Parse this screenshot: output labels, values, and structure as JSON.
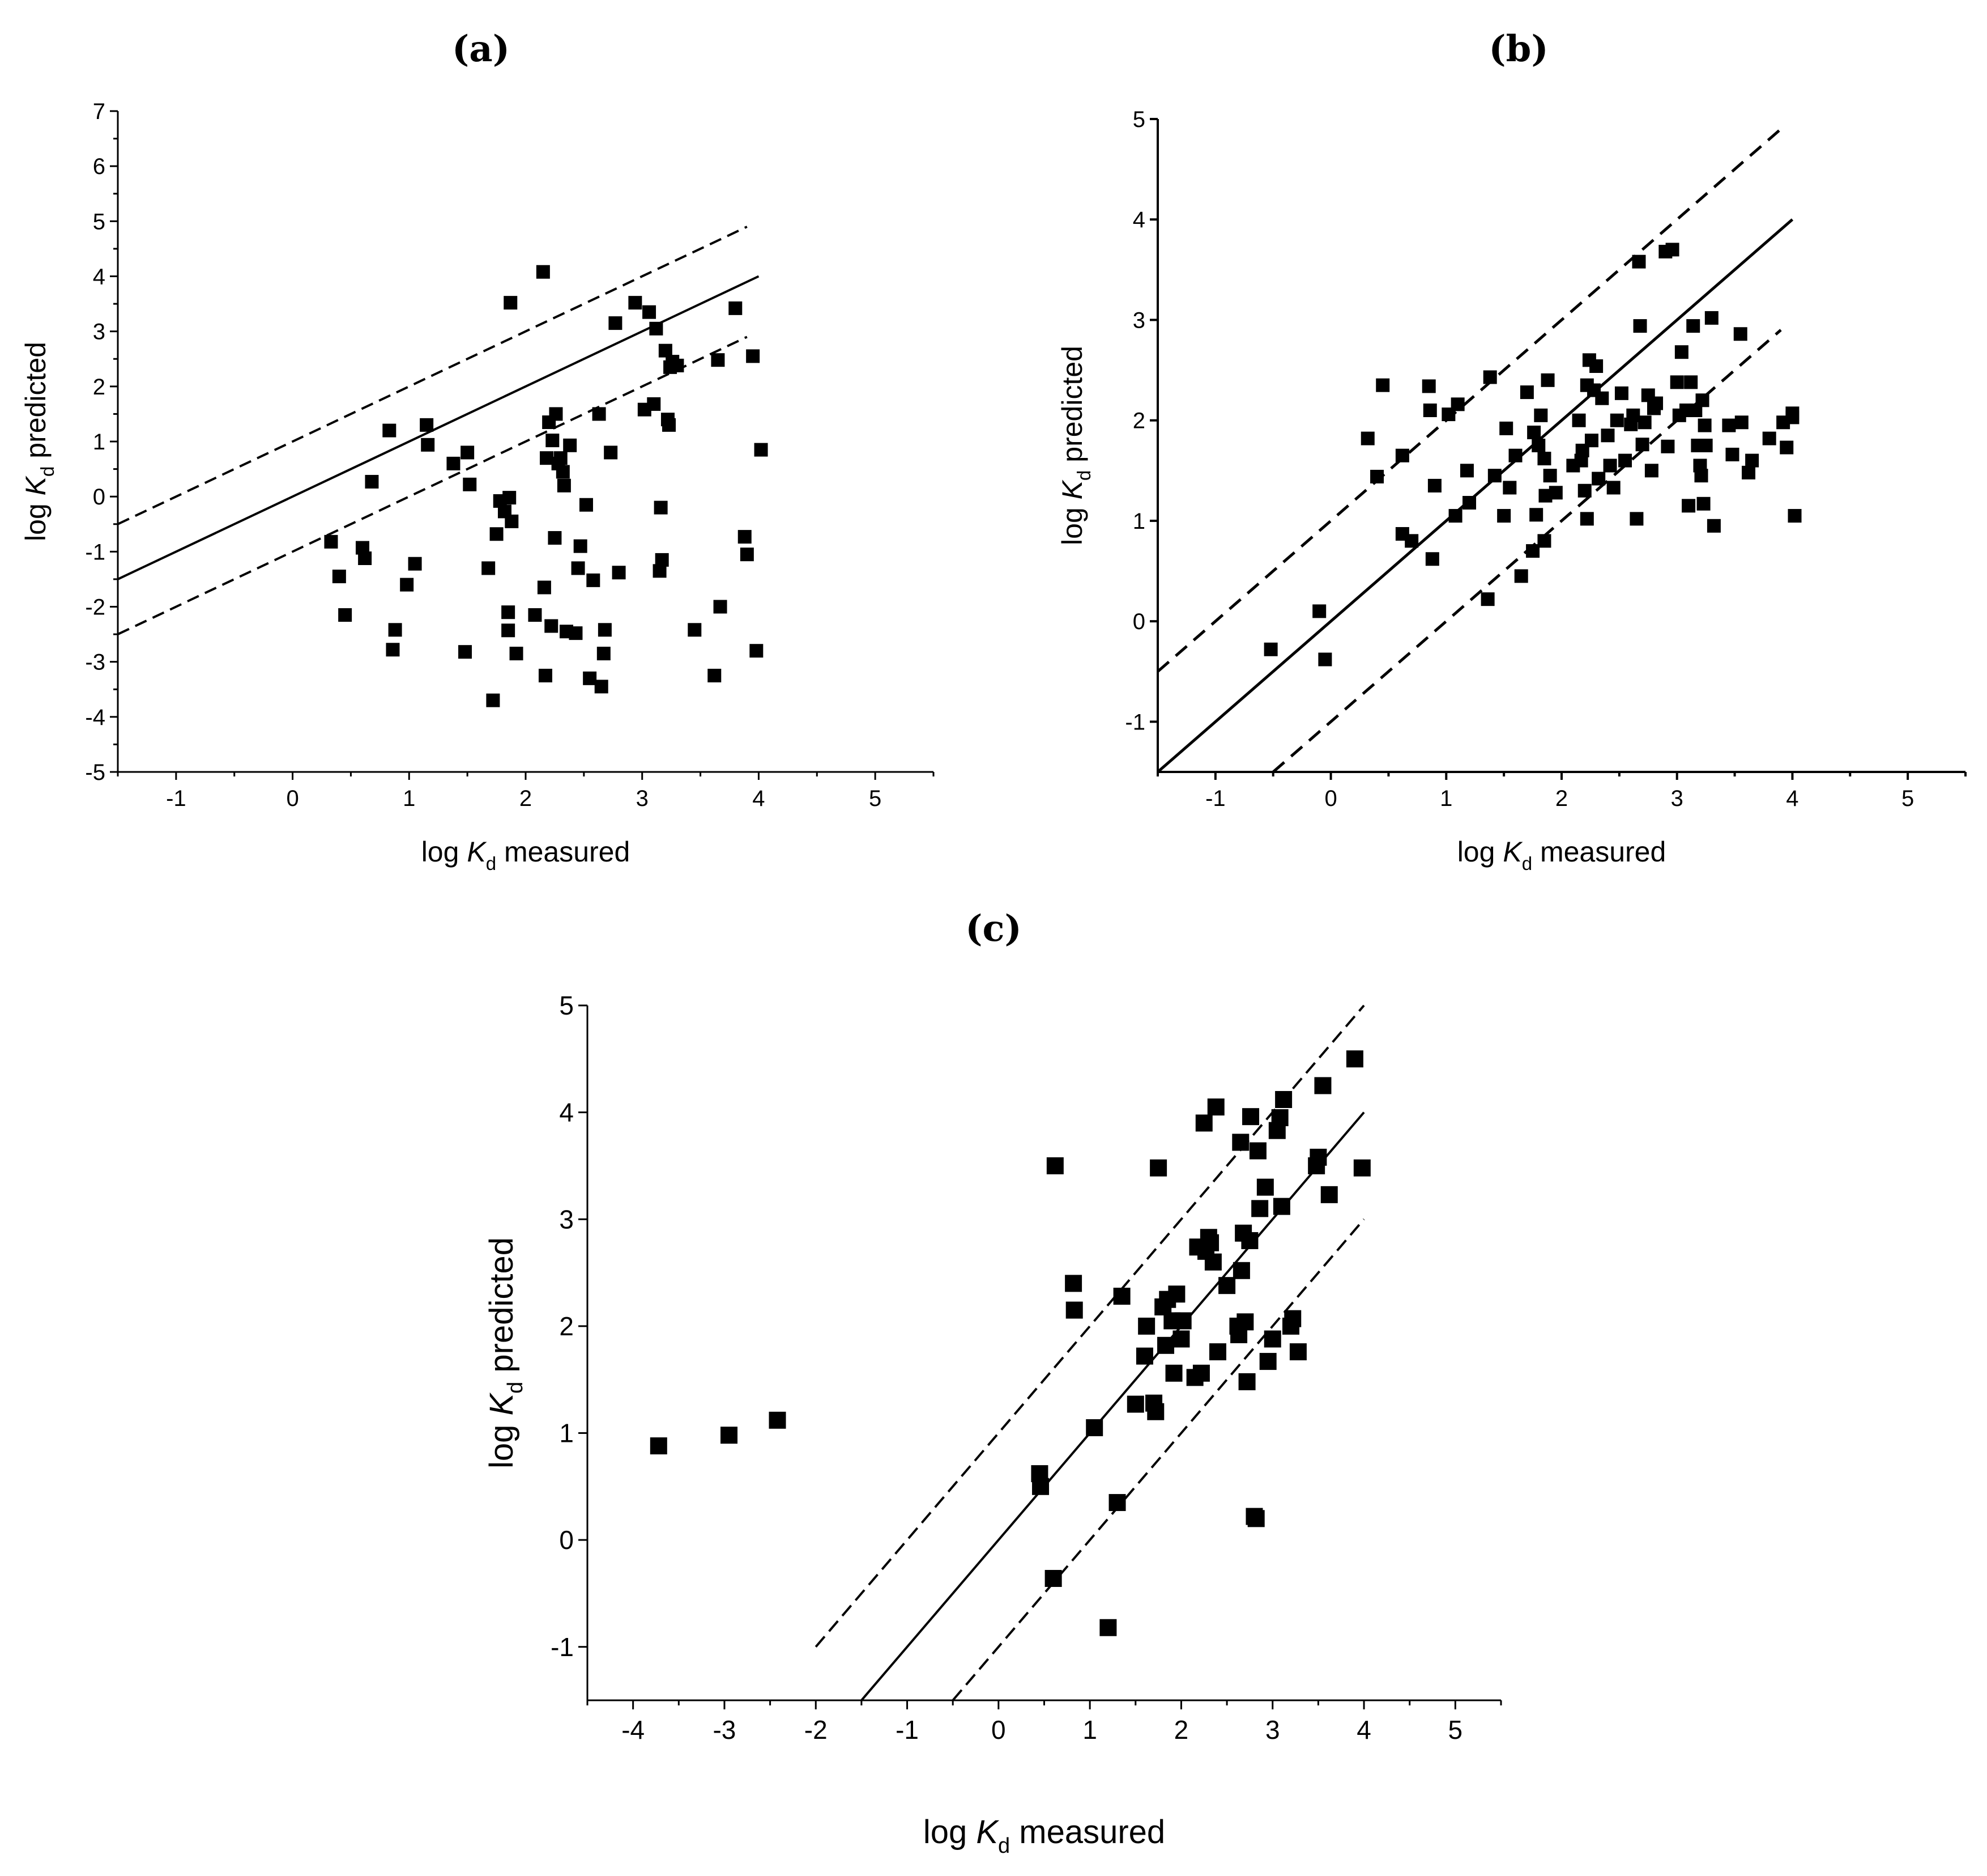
{
  "chart_data": [
    {
      "panel": "(a)",
      "type": "scatter",
      "xlabel": {
        "prefix": "log ",
        "var": "K",
        "sub": "d",
        "suffix": " measured"
      },
      "ylabel": {
        "prefix": "log ",
        "var": "K",
        "sub": "d",
        "suffix": " predicted"
      },
      "xlim": [
        -1.5,
        5.5
      ],
      "ylim": [
        -5,
        7
      ],
      "xticks": [
        -1,
        0,
        1,
        2,
        3,
        4,
        5
      ],
      "yticks": [
        -5,
        -4,
        -3,
        -2,
        -1,
        0,
        1,
        2,
        3,
        4,
        5,
        6,
        7
      ],
      "lines": [
        {
          "name": "y = x",
          "style": "solid",
          "x": [
            -1.5,
            4
          ],
          "y": [
            -1.5,
            4
          ]
        },
        {
          "name": "y = x + 1",
          "style": "dashed",
          "x": [
            -1.5,
            3.9
          ],
          "y": [
            -0.5,
            4.9
          ]
        },
        {
          "name": "y = x - 1",
          "style": "dashed",
          "x": [
            -1.5,
            3.9
          ],
          "y": [
            -2.5,
            2.9
          ]
        }
      ],
      "points": [
        [
          0.33,
          -0.82
        ],
        [
          0.4,
          -1.45
        ],
        [
          0.45,
          -2.15
        ],
        [
          0.6,
          -0.93
        ],
        [
          0.62,
          -1.12
        ],
        [
          0.68,
          0.27
        ],
        [
          0.83,
          1.2
        ],
        [
          0.86,
          -2.78
        ],
        [
          0.88,
          -2.42
        ],
        [
          0.98,
          -1.6
        ],
        [
          1.05,
          -1.22
        ],
        [
          1.15,
          1.3
        ],
        [
          1.16,
          0.94
        ],
        [
          1.38,
          0.6
        ],
        [
          1.48,
          -2.82
        ],
        [
          1.5,
          0.8
        ],
        [
          1.52,
          0.22
        ],
        [
          1.68,
          -1.3
        ],
        [
          1.72,
          -3.7
        ],
        [
          1.75,
          -0.68
        ],
        [
          1.78,
          -0.08
        ],
        [
          1.82,
          -0.27
        ],
        [
          1.85,
          -2.1
        ],
        [
          1.85,
          -2.43
        ],
        [
          1.86,
          -0.02
        ],
        [
          1.87,
          3.52
        ],
        [
          1.88,
          -0.45
        ],
        [
          1.92,
          -2.85
        ],
        [
          2.08,
          -2.15
        ],
        [
          2.15,
          4.08
        ],
        [
          2.16,
          -1.65
        ],
        [
          2.17,
          -3.25
        ],
        [
          2.18,
          0.7
        ],
        [
          2.2,
          1.35
        ],
        [
          2.22,
          -2.35
        ],
        [
          2.23,
          1.02
        ],
        [
          2.25,
          -0.75
        ],
        [
          2.26,
          1.5
        ],
        [
          2.28,
          0.6
        ],
        [
          2.3,
          0.7
        ],
        [
          2.32,
          0.45
        ],
        [
          2.33,
          0.2
        ],
        [
          2.35,
          -2.45
        ],
        [
          2.38,
          0.93
        ],
        [
          2.43,
          -2.48
        ],
        [
          2.45,
          -1.3
        ],
        [
          2.47,
          -0.9
        ],
        [
          2.52,
          -0.15
        ],
        [
          2.55,
          -3.3
        ],
        [
          2.58,
          -1.52
        ],
        [
          2.63,
          1.5
        ],
        [
          2.65,
          -3.45
        ],
        [
          2.67,
          -2.85
        ],
        [
          2.68,
          -2.42
        ],
        [
          2.73,
          0.8
        ],
        [
          2.77,
          3.15
        ],
        [
          2.8,
          -1.38
        ],
        [
          2.94,
          3.52
        ],
        [
          3.02,
          1.58
        ],
        [
          3.06,
          3.35
        ],
        [
          3.1,
          1.68
        ],
        [
          3.12,
          3.05
        ],
        [
          3.15,
          -1.35
        ],
        [
          3.16,
          -0.2
        ],
        [
          3.17,
          -1.15
        ],
        [
          3.2,
          2.65
        ],
        [
          3.22,
          1.4
        ],
        [
          3.24,
          2.35
        ],
        [
          3.23,
          1.3
        ],
        [
          3.26,
          2.45
        ],
        [
          3.3,
          2.38
        ],
        [
          3.45,
          -2.42
        ],
        [
          3.62,
          -3.25
        ],
        [
          3.65,
          2.48
        ],
        [
          3.67,
          -2.0
        ],
        [
          3.8,
          3.42
        ],
        [
          3.88,
          -0.73
        ],
        [
          3.9,
          -1.05
        ],
        [
          3.95,
          2.55
        ],
        [
          3.98,
          -2.8
        ],
        [
          4.02,
          0.85
        ]
      ]
    },
    {
      "panel": "(b)",
      "type": "scatter",
      "xlabel": {
        "prefix": "log ",
        "var": "K",
        "sub": "d",
        "suffix": " measured"
      },
      "ylabel": {
        "prefix": "log ",
        "var": "K",
        "sub": "d",
        "suffix": " predicted"
      },
      "xlim": [
        -1.5,
        5.5
      ],
      "ylim": [
        -1.5,
        5
      ],
      "xticks": [
        -1,
        0,
        1,
        2,
        3,
        4,
        5
      ],
      "yticks": [
        -1,
        0,
        1,
        2,
        3,
        4,
        5
      ],
      "lines": [
        {
          "name": "y = x",
          "style": "solid",
          "x": [
            -1.5,
            4
          ],
          "y": [
            -1.5,
            4
          ]
        },
        {
          "name": "y = x + 1",
          "style": "dashed",
          "x": [
            -1.5,
            3.9
          ],
          "y": [
            -0.5,
            4.9
          ]
        },
        {
          "name": "y = x - 1",
          "style": "dashed",
          "x": [
            -0.5,
            3.9
          ],
          "y": [
            -1.5,
            2.9
          ]
        }
      ],
      "points": [
        [
          -0.52,
          -0.28
        ],
        [
          -0.1,
          0.1
        ],
        [
          -0.05,
          -0.38
        ],
        [
          0.32,
          1.82
        ],
        [
          0.4,
          1.44
        ],
        [
          0.45,
          2.35
        ],
        [
          0.62,
          1.65
        ],
        [
          0.62,
          0.87
        ],
        [
          0.7,
          0.8
        ],
        [
          0.85,
          2.34
        ],
        [
          0.86,
          2.1
        ],
        [
          0.88,
          0.62
        ],
        [
          0.9,
          1.35
        ],
        [
          1.02,
          2.06
        ],
        [
          1.08,
          1.05
        ],
        [
          1.1,
          2.16
        ],
        [
          1.18,
          1.5
        ],
        [
          1.2,
          1.18
        ],
        [
          1.36,
          0.22
        ],
        [
          1.38,
          2.43
        ],
        [
          1.42,
          1.45
        ],
        [
          1.5,
          1.05
        ],
        [
          1.52,
          1.92
        ],
        [
          1.55,
          1.33
        ],
        [
          1.6,
          1.65
        ],
        [
          1.65,
          0.45
        ],
        [
          1.7,
          2.28
        ],
        [
          1.75,
          0.7
        ],
        [
          1.76,
          1.88
        ],
        [
          1.78,
          1.06
        ],
        [
          1.8,
          1.75
        ],
        [
          1.82,
          2.05
        ],
        [
          1.85,
          1.62
        ],
        [
          1.85,
          0.8
        ],
        [
          1.86,
          1.25
        ],
        [
          1.88,
          2.4
        ],
        [
          1.9,
          1.45
        ],
        [
          1.95,
          1.28
        ],
        [
          2.1,
          1.55
        ],
        [
          2.15,
          2.0
        ],
        [
          2.17,
          1.6
        ],
        [
          2.18,
          1.7
        ],
        [
          2.2,
          1.3
        ],
        [
          2.22,
          1.02
        ],
        [
          2.22,
          2.35
        ],
        [
          2.24,
          2.6
        ],
        [
          2.26,
          1.8
        ],
        [
          2.28,
          2.3
        ],
        [
          2.3,
          2.54
        ],
        [
          2.32,
          1.42
        ],
        [
          2.35,
          2.22
        ],
        [
          2.4,
          1.85
        ],
        [
          2.42,
          1.55
        ],
        [
          2.45,
          1.33
        ],
        [
          2.48,
          2.0
        ],
        [
          2.52,
          2.27
        ],
        [
          2.55,
          1.6
        ],
        [
          2.6,
          1.96
        ],
        [
          2.62,
          2.05
        ],
        [
          2.65,
          1.02
        ],
        [
          2.67,
          3.58
        ],
        [
          2.68,
          2.94
        ],
        [
          2.7,
          1.76
        ],
        [
          2.72,
          1.98
        ],
        [
          2.75,
          2.25
        ],
        [
          2.78,
          1.5
        ],
        [
          2.8,
          2.12
        ],
        [
          2.82,
          2.17
        ],
        [
          2.9,
          3.68
        ],
        [
          2.92,
          1.74
        ],
        [
          2.96,
          3.7
        ],
        [
          3.0,
          2.38
        ],
        [
          3.02,
          2.05
        ],
        [
          3.04,
          2.68
        ],
        [
          3.08,
          2.1
        ],
        [
          3.1,
          1.15
        ],
        [
          3.12,
          2.38
        ],
        [
          3.14,
          2.94
        ],
        [
          3.16,
          2.1
        ],
        [
          3.18,
          1.75
        ],
        [
          3.2,
          1.55
        ],
        [
          3.21,
          1.45
        ],
        [
          3.22,
          2.2
        ],
        [
          3.23,
          1.17
        ],
        [
          3.24,
          1.95
        ],
        [
          3.25,
          1.75
        ],
        [
          3.3,
          3.02
        ],
        [
          3.32,
          0.95
        ],
        [
          3.45,
          1.95
        ],
        [
          3.48,
          1.66
        ],
        [
          3.55,
          2.86
        ],
        [
          3.56,
          1.98
        ],
        [
          3.62,
          1.48
        ],
        [
          3.65,
          1.6
        ],
        [
          3.8,
          1.82
        ],
        [
          3.92,
          1.98
        ],
        [
          3.95,
          1.73
        ],
        [
          4.0,
          2.07
        ],
        [
          4.02,
          1.05
        ],
        [
          4.0,
          2.03
        ]
      ]
    },
    {
      "panel": "(c)",
      "type": "scatter",
      "xlabel": {
        "prefix": "log ",
        "var": "K",
        "sub": "d",
        "suffix": " measured"
      },
      "ylabel": {
        "prefix": "log ",
        "var": "K",
        "sub": "d",
        "suffix": " predicted"
      },
      "xlim": [
        -4.5,
        5.5
      ],
      "ylim": [
        -1.5,
        5
      ],
      "xticks": [
        -4,
        -3,
        -2,
        -1,
        0,
        1,
        2,
        3,
        4,
        5
      ],
      "yticks": [
        -1,
        0,
        1,
        2,
        3,
        4,
        5
      ],
      "lines": [
        {
          "name": "y = x",
          "style": "solid",
          "x": [
            -1.5,
            4
          ],
          "y": [
            -1.5,
            4
          ]
        },
        {
          "name": "y = x + 1",
          "style": "dashed",
          "x": [
            -2,
            4
          ],
          "y": [
            -1,
            5
          ]
        },
        {
          "name": "y = x - 1",
          "style": "dashed",
          "x": [
            -0.5,
            4
          ],
          "y": [
            -1.5,
            3
          ]
        }
      ],
      "points": [
        [
          -3.72,
          0.88
        ],
        [
          -2.95,
          0.98
        ],
        [
          -2.42,
          1.12
        ],
        [
          0.45,
          0.62
        ],
        [
          0.46,
          0.5
        ],
        [
          0.6,
          -0.36
        ],
        [
          0.62,
          3.5
        ],
        [
          0.82,
          2.4
        ],
        [
          0.83,
          2.15
        ],
        [
          1.05,
          1.05
        ],
        [
          1.2,
          -0.82
        ],
        [
          1.3,
          0.35
        ],
        [
          1.35,
          2.28
        ],
        [
          1.5,
          1.27
        ],
        [
          1.6,
          1.72
        ],
        [
          1.62,
          2.0
        ],
        [
          1.7,
          1.28
        ],
        [
          1.72,
          1.2
        ],
        [
          1.75,
          3.48
        ],
        [
          1.8,
          2.18
        ],
        [
          1.83,
          1.82
        ],
        [
          1.85,
          2.25
        ],
        [
          1.9,
          2.05
        ],
        [
          1.92,
          1.56
        ],
        [
          1.95,
          2.3
        ],
        [
          2.0,
          1.88
        ],
        [
          2.02,
          2.05
        ],
        [
          2.15,
          1.52
        ],
        [
          2.18,
          2.74
        ],
        [
          2.22,
          1.56
        ],
        [
          2.25,
          3.9
        ],
        [
          2.27,
          2.7
        ],
        [
          2.3,
          2.83
        ],
        [
          2.32,
          2.78
        ],
        [
          2.35,
          2.6
        ],
        [
          2.38,
          4.05
        ],
        [
          2.4,
          1.76
        ],
        [
          2.5,
          2.38
        ],
        [
          2.62,
          2.0
        ],
        [
          2.63,
          1.92
        ],
        [
          2.65,
          3.72
        ],
        [
          2.66,
          2.52
        ],
        [
          2.68,
          2.87
        ],
        [
          2.7,
          2.04
        ],
        [
          2.72,
          1.48
        ],
        [
          2.75,
          2.8
        ],
        [
          2.76,
          3.96
        ],
        [
          2.8,
          0.22
        ],
        [
          2.82,
          0.2
        ],
        [
          2.84,
          3.64
        ],
        [
          2.86,
          3.1
        ],
        [
          2.92,
          3.3
        ],
        [
          2.95,
          1.67
        ],
        [
          3.0,
          1.88
        ],
        [
          3.05,
          3.83
        ],
        [
          3.08,
          3.95
        ],
        [
          3.1,
          3.12
        ],
        [
          3.12,
          4.12
        ],
        [
          3.2,
          2.0
        ],
        [
          3.22,
          2.07
        ],
        [
          3.28,
          1.76
        ],
        [
          3.48,
          3.5
        ],
        [
          3.5,
          3.58
        ],
        [
          3.55,
          4.25
        ],
        [
          3.62,
          3.23
        ],
        [
          3.9,
          4.5
        ],
        [
          3.98,
          3.48
        ]
      ]
    }
  ]
}
